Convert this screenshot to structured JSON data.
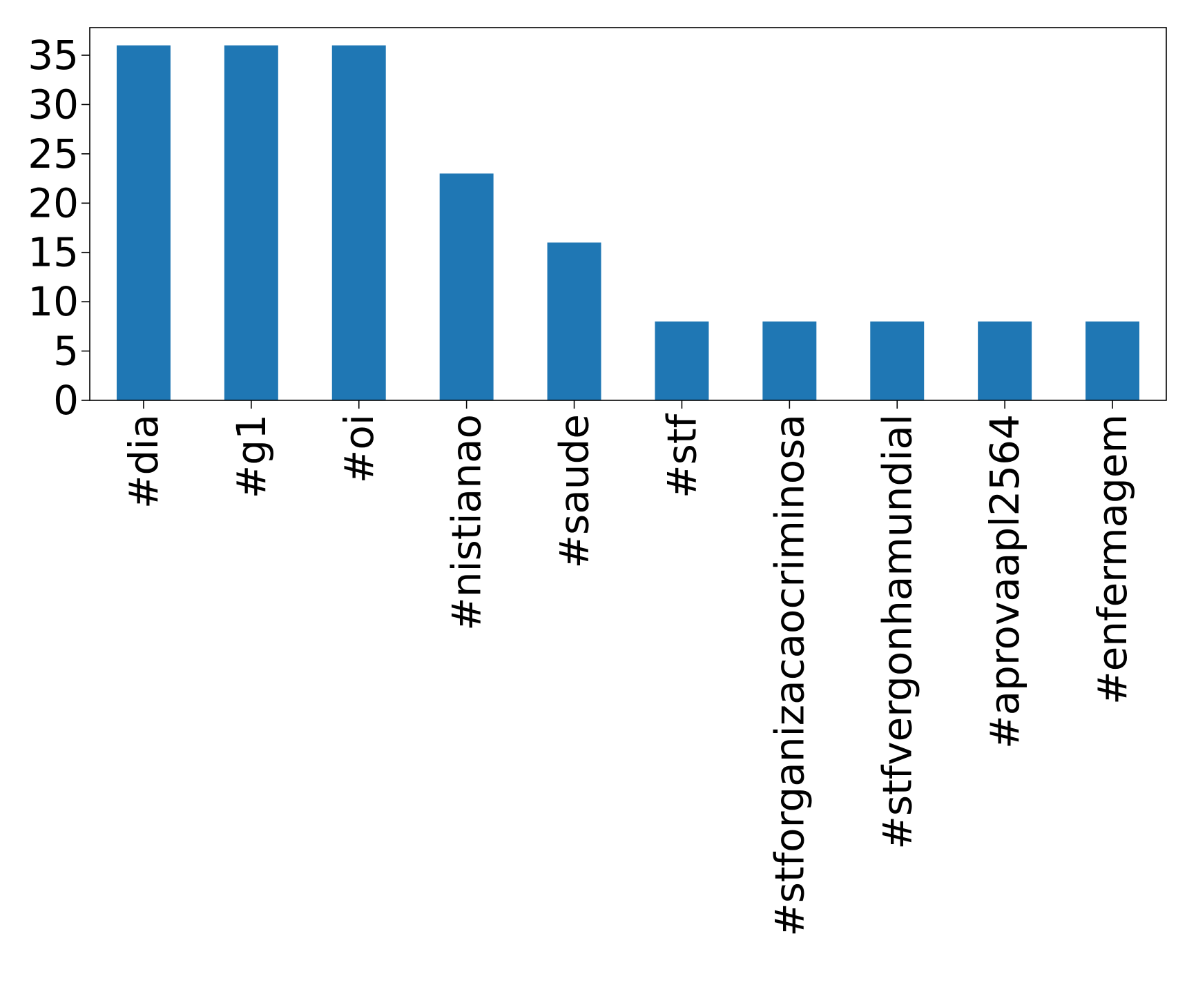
{
  "chart_data": {
    "type": "bar",
    "title": "",
    "xlabel": "",
    "ylabel": "",
    "categories": [
      "#dia",
      "#g1",
      "#oi",
      "#nistianao",
      "#saude",
      "#stf",
      "#stforganizacaocriminosa",
      "#stfvergonhamundial",
      "#aprovaapl2564",
      "#enfermagem"
    ],
    "values": [
      36,
      36,
      36,
      23,
      16,
      8,
      8,
      8,
      8,
      8
    ],
    "ylim": [
      0,
      37.8
    ],
    "yticks": [
      0,
      5,
      10,
      15,
      20,
      25,
      30,
      35
    ],
    "grid": false,
    "legend": "none",
    "bar_color": "#1f77b4",
    "axis_color": "#000000"
  }
}
